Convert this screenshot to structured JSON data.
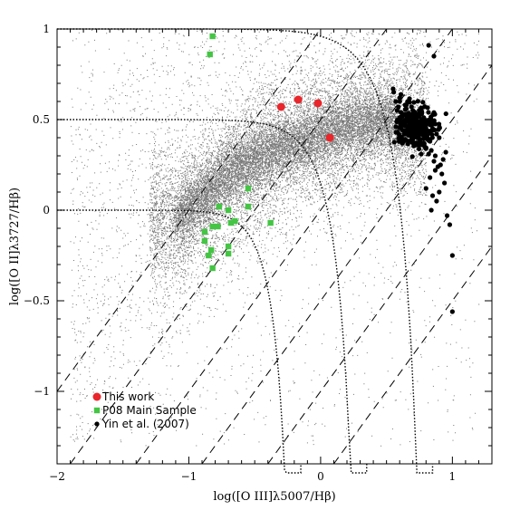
{
  "chart_data": {
    "type": "scatter",
    "xlabel": "log([O III]λ5007/Hβ)",
    "ylabel": "log([O II]λ3727/Hβ)",
    "xlim": [
      -2,
      1.3
    ],
    "ylim": [
      -1.4,
      1
    ],
    "xticks": [
      -2,
      -1,
      0,
      1
    ],
    "xtick_labels": [
      "−2",
      "−1",
      "0",
      "1"
    ],
    "yticks": [
      -1,
      -0.5,
      0,
      0.5,
      1
    ],
    "ytick_labels": [
      "−1",
      "−0.5",
      "0",
      "0.5",
      "1"
    ],
    "grid": false,
    "legend_position": "bottom-left",
    "background_cloud": {
      "color": "#777777",
      "description_values": {
        "main_ridge": [
          [
            -1.1,
            -0.05
          ],
          [
            -0.7,
            0.2
          ],
          [
            -0.3,
            0.35
          ],
          [
            0.1,
            0.45
          ],
          [
            0.5,
            0.5
          ],
          [
            0.6,
            0.45
          ]
        ]
      }
    },
    "reference_lines": {
      "dotted_curves": [
        {
          "y0": 1.0,
          "x_end": 0.85
        },
        {
          "y0": 0.5,
          "x_end": 0.35
        },
        {
          "y0": 0.0,
          "x_end": -0.15
        }
      ],
      "dashed_lines_intercepts": [
        1.0,
        0.5,
        0.0,
        -0.5,
        -1.0,
        -1.5
      ]
    },
    "series": [
      {
        "name": "This work",
        "color": "#e8262b",
        "marker": "circle",
        "x": [
          -0.3,
          -0.17,
          -0.02,
          0.07
        ],
        "y": [
          0.57,
          0.61,
          0.59,
          0.4
        ]
      },
      {
        "name": "P08 Main Sample",
        "color": "#44c544",
        "marker": "square",
        "x": [
          -0.82,
          -0.84,
          -0.77,
          -0.7,
          -0.65,
          -0.68,
          -0.78,
          -0.55,
          -0.55,
          -0.38,
          -0.82,
          -0.88,
          -0.88,
          -0.83,
          -0.85,
          -0.7,
          -0.7,
          -0.82
        ],
        "y": [
          0.96,
          0.86,
          0.02,
          0.0,
          -0.06,
          -0.07,
          -0.09,
          0.12,
          0.02,
          -0.07,
          -0.09,
          -0.12,
          -0.17,
          -0.22,
          -0.25,
          -0.2,
          -0.24,
          -0.32
        ]
      },
      {
        "name": "Yin et al. (2007)",
        "color": "#000000",
        "marker": "dot",
        "x": [
          0.82,
          0.86,
          0.55,
          0.6,
          0.58,
          0.65,
          0.7,
          0.75,
          0.72,
          0.68,
          0.8,
          0.85,
          0.88,
          0.9,
          0.78,
          0.83,
          0.74,
          0.62,
          0.66,
          0.71,
          0.77,
          0.81,
          0.69,
          0.73,
          0.64,
          0.79,
          0.84,
          0.87,
          0.63,
          0.67,
          0.76,
          0.7,
          0.74,
          0.78,
          0.72,
          0.68,
          0.75,
          0.8,
          0.82,
          0.65,
          0.71,
          0.77,
          0.6,
          0.86,
          0.89,
          0.92,
          0.94,
          0.9,
          0.85,
          0.88,
          0.8,
          0.84,
          0.96,
          0.98,
          0.83,
          0.87,
          0.91,
          0.93,
          0.95,
          1.0,
          1.0,
          0.57,
          0.59,
          0.61,
          0.69,
          0.73,
          0.76,
          0.79,
          0.81,
          0.66
        ],
        "y": [
          0.91,
          0.85,
          0.67,
          0.62,
          0.55,
          0.58,
          0.55,
          0.52,
          0.5,
          0.48,
          0.47,
          0.45,
          0.42,
          0.4,
          0.44,
          0.38,
          0.41,
          0.53,
          0.46,
          0.44,
          0.43,
          0.4,
          0.39,
          0.36,
          0.42,
          0.35,
          0.33,
          0.3,
          0.48,
          0.51,
          0.47,
          0.45,
          0.49,
          0.37,
          0.43,
          0.46,
          0.38,
          0.34,
          0.31,
          0.56,
          0.52,
          0.5,
          0.6,
          0.27,
          0.24,
          0.2,
          0.15,
          0.1,
          0.08,
          0.05,
          0.12,
          0.0,
          -0.03,
          -0.08,
          0.18,
          0.22,
          0.25,
          0.28,
          0.32,
          -0.25,
          -0.56,
          0.6,
          0.57,
          0.54,
          0.57,
          0.53,
          0.55,
          0.49,
          0.44,
          0.6
        ]
      }
    ],
    "legend": [
      {
        "label": "This work",
        "color": "#e8262b",
        "marker": "circle"
      },
      {
        "label": "P08 Main Sample",
        "color": "#44c544",
        "marker": "square"
      },
      {
        "label": "Yin et al. (2007)",
        "color": "#000000",
        "marker": "dot"
      }
    ]
  }
}
